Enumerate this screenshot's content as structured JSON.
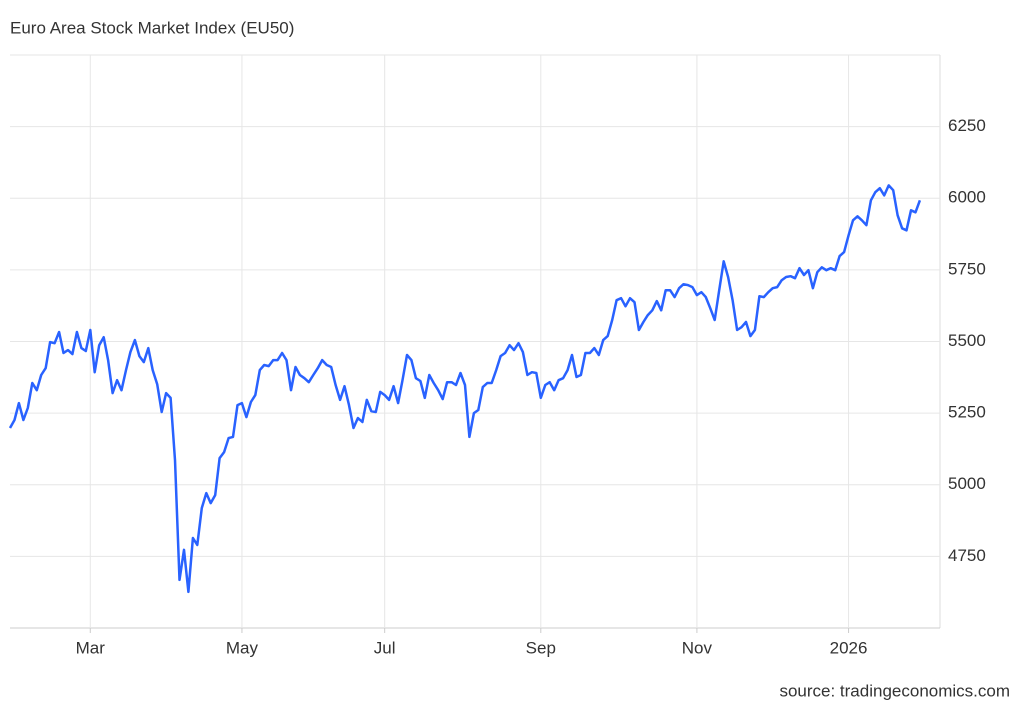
{
  "chart_data": {
    "type": "line",
    "title": "Euro Area Stock Market Index (EU50)",
    "source": "source: tradingeconomics.com",
    "color": "#2962ff",
    "grid": true,
    "y_axis_side": "right",
    "values": [
      5198,
      5226,
      5285,
      5226,
      5268,
      5355,
      5330,
      5383,
      5407,
      5498,
      5494,
      5533,
      5460,
      5470,
      5456,
      5533,
      5477,
      5467,
      5540,
      5393,
      5487,
      5515,
      5435,
      5320,
      5365,
      5330,
      5400,
      5463,
      5505,
      5449,
      5428,
      5477,
      5400,
      5351,
      5254,
      5320,
      5303,
      5086,
      4668,
      4773,
      4626,
      4814,
      4790,
      4919,
      4971,
      4936,
      4964,
      5093,
      5114,
      5163,
      5167,
      5278,
      5285,
      5236,
      5289,
      5313,
      5400,
      5418,
      5414,
      5435,
      5435,
      5460,
      5435,
      5330,
      5411,
      5383,
      5372,
      5358,
      5383,
      5407,
      5435,
      5418,
      5411,
      5348,
      5296,
      5344,
      5278,
      5198,
      5233,
      5219,
      5296,
      5257,
      5254,
      5324,
      5313,
      5296,
      5344,
      5285,
      5365,
      5453,
      5435,
      5372,
      5362,
      5303,
      5383,
      5355,
      5330,
      5299,
      5358,
      5358,
      5348,
      5390,
      5348,
      5167,
      5250,
      5261,
      5341,
      5355,
      5355,
      5400,
      5449,
      5460,
      5487,
      5470,
      5494,
      5463,
      5383,
      5393,
      5390,
      5303,
      5348,
      5358,
      5330,
      5365,
      5372,
      5400,
      5453,
      5376,
      5383,
      5460,
      5460,
      5477,
      5453,
      5505,
      5519,
      5575,
      5644,
      5651,
      5623,
      5651,
      5637,
      5540,
      5568,
      5592,
      5609,
      5641,
      5609,
      5679,
      5679,
      5655,
      5686,
      5700,
      5697,
      5690,
      5662,
      5672,
      5655,
      5616,
      5575,
      5679,
      5780,
      5725,
      5644,
      5540,
      5550,
      5568,
      5519,
      5540,
      5658,
      5655,
      5672,
      5686,
      5690,
      5714,
      5725,
      5728,
      5721,
      5756,
      5732,
      5749,
      5686,
      5742,
      5759,
      5749,
      5756,
      5749,
      5798,
      5812,
      5871,
      5923,
      5937,
      5923,
      5906,
      5993,
      6021,
      6035,
      6010,
      6045,
      6028,
      5941,
      5895,
      5888,
      5958,
      5951,
      5993
    ],
    "xlim": [
      0,
      208.5
    ],
    "xticks": [
      {
        "value": 18,
        "label": "Mar"
      },
      {
        "value": 52,
        "label": "May"
      },
      {
        "value": 84,
        "label": "Jul"
      },
      {
        "value": 119,
        "label": "Sep"
      },
      {
        "value": 154,
        "label": "Nov"
      },
      {
        "value": 188,
        "label": "2026"
      }
    ],
    "ylim": [
      4500,
      6500
    ],
    "yticks": [
      4750,
      5000,
      5250,
      5500,
      5750,
      6000,
      6250
    ]
  }
}
